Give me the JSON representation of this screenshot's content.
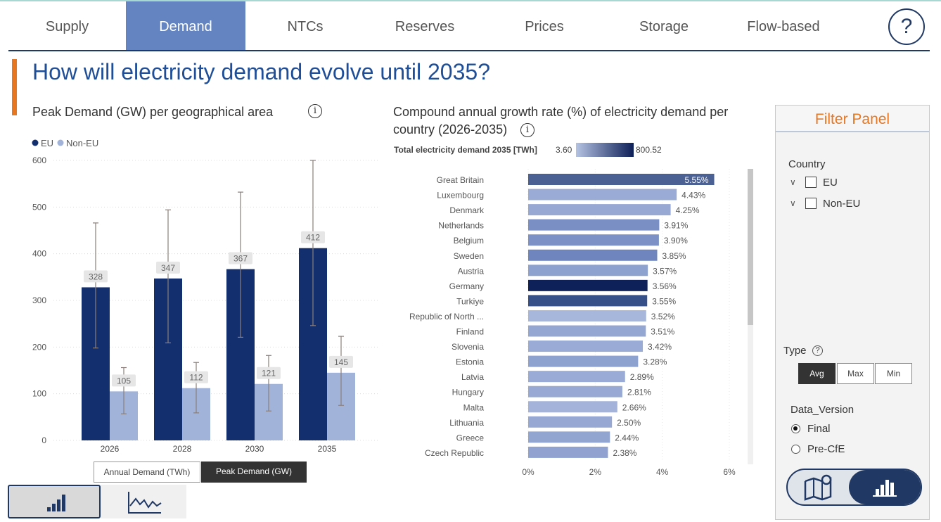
{
  "nav": {
    "tabs": [
      {
        "label": "Supply",
        "active": false
      },
      {
        "label": "Demand",
        "active": true
      },
      {
        "label": "NTCs",
        "active": false
      },
      {
        "label": "Reserves",
        "active": false
      },
      {
        "label": "Prices",
        "active": false
      },
      {
        "label": "Storage",
        "active": false
      },
      {
        "label": "Flow-based",
        "active": false
      }
    ],
    "help_label": "?"
  },
  "page": {
    "title": "How will electricity demand evolve until 2035?",
    "accent_color": "#e87722"
  },
  "peak_panel": {
    "title": "Peak Demand (GW) per geographical area",
    "info_label": "i",
    "toggle": {
      "annual_label": "Annual Demand (TWh)",
      "peak_label": "Peak Demand (GW)",
      "selected": "peak"
    }
  },
  "cagr_panel": {
    "title_line1": "Compound annual growth rate (%) of electricity demand per",
    "title_line2": "country (2026-2035)",
    "info_label": "i",
    "gradient_legend": {
      "label": "Total electricity demand 2035 [TWh]",
      "min": "3.60",
      "max": "800.52",
      "min_color": "#b4c2e2",
      "max_color": "#0d1f57"
    }
  },
  "view_buttons": {
    "bar_view": "bar-chart-icon",
    "line_view": "line-chart-icon",
    "selected": "bar"
  },
  "filter": {
    "title": "Filter Panel",
    "country_label": "Country",
    "country_options": [
      {
        "label": "EU",
        "checked": false
      },
      {
        "label": "Non-EU",
        "checked": false
      }
    ],
    "type_label": "Type",
    "type_options": [
      "Avg",
      "Max",
      "Min"
    ],
    "type_selected": "Avg",
    "data_version_label": "Data_Version",
    "data_version_options": [
      {
        "label": "Final",
        "selected": true
      },
      {
        "label": "Pre-CfE",
        "selected": false
      }
    ],
    "map_switch": {
      "left_icon": "map-icon",
      "right_icon": "bar-chart-icon",
      "selected": "right"
    }
  },
  "chart_data": [
    {
      "type": "bar",
      "title": "Peak Demand (GW) per geographical area",
      "categories": [
        "2026",
        "2028",
        "2030",
        "2035"
      ],
      "series": [
        {
          "name": "EU",
          "color": "#142f6e",
          "values": [
            328,
            347,
            367,
            412
          ],
          "error_low": [
            198,
            209,
            221,
            246
          ],
          "error_high": [
            466,
            494,
            532,
            600
          ]
        },
        {
          "name": "Non-EU",
          "color": "#a1b3d8",
          "values": [
            105,
            112,
            121,
            145
          ],
          "error_low": [
            57,
            59,
            63,
            75
          ],
          "error_high": [
            156,
            167,
            182,
            223
          ]
        }
      ],
      "ylim": [
        0,
        600
      ],
      "yticks": [
        0,
        100,
        200,
        300,
        400,
        500,
        600
      ],
      "legend": "top-left",
      "grid": true
    },
    {
      "type": "bar",
      "orientation": "horizontal",
      "title": "Compound annual growth rate (%) of electricity demand per country (2026-2035)",
      "categories": [
        "Great Britain",
        "Luxembourg",
        "Denmark",
        "Netherlands",
        "Belgium",
        "Sweden",
        "Austria",
        "Germany",
        "Turkiye",
        "Republic of North ...",
        "Finland",
        "Slovenia",
        "Estonia",
        "Latvia",
        "Hungary",
        "Malta",
        "Lithuania",
        "Greece",
        "Czech Republic"
      ],
      "values": [
        5.55,
        4.43,
        4.25,
        3.91,
        3.9,
        3.85,
        3.57,
        3.56,
        3.55,
        3.52,
        3.51,
        3.42,
        3.28,
        2.89,
        2.81,
        2.66,
        2.5,
        2.44,
        2.38
      ],
      "value_labels": [
        "5.55%",
        "4.43%",
        "4.25%",
        "3.91%",
        "3.90%",
        "3.85%",
        "3.57%",
        "3.56%",
        "3.55%",
        "3.52%",
        "3.51%",
        "3.42%",
        "3.28%",
        "2.89%",
        "2.81%",
        "2.66%",
        "2.50%",
        "2.44%",
        "2.38%"
      ],
      "colors": [
        "#4b6193",
        "#9aacd5",
        "#97a9d3",
        "#7a8fc4",
        "#7c91c5",
        "#6f85bd",
        "#8ea2d0",
        "#0f2159",
        "#36508a",
        "#a7b6db",
        "#94a7d2",
        "#9aacd5",
        "#8ea2d0",
        "#9aacd5",
        "#98aad4",
        "#a3b3d9",
        "#97a9d3",
        "#92a5d1",
        "#8fa2d0"
      ],
      "xlim": [
        0,
        6
      ],
      "xticks": [
        "0%",
        "2%",
        "4%",
        "6%"
      ],
      "xtick_values": [
        0,
        2,
        4,
        6
      ]
    }
  ]
}
